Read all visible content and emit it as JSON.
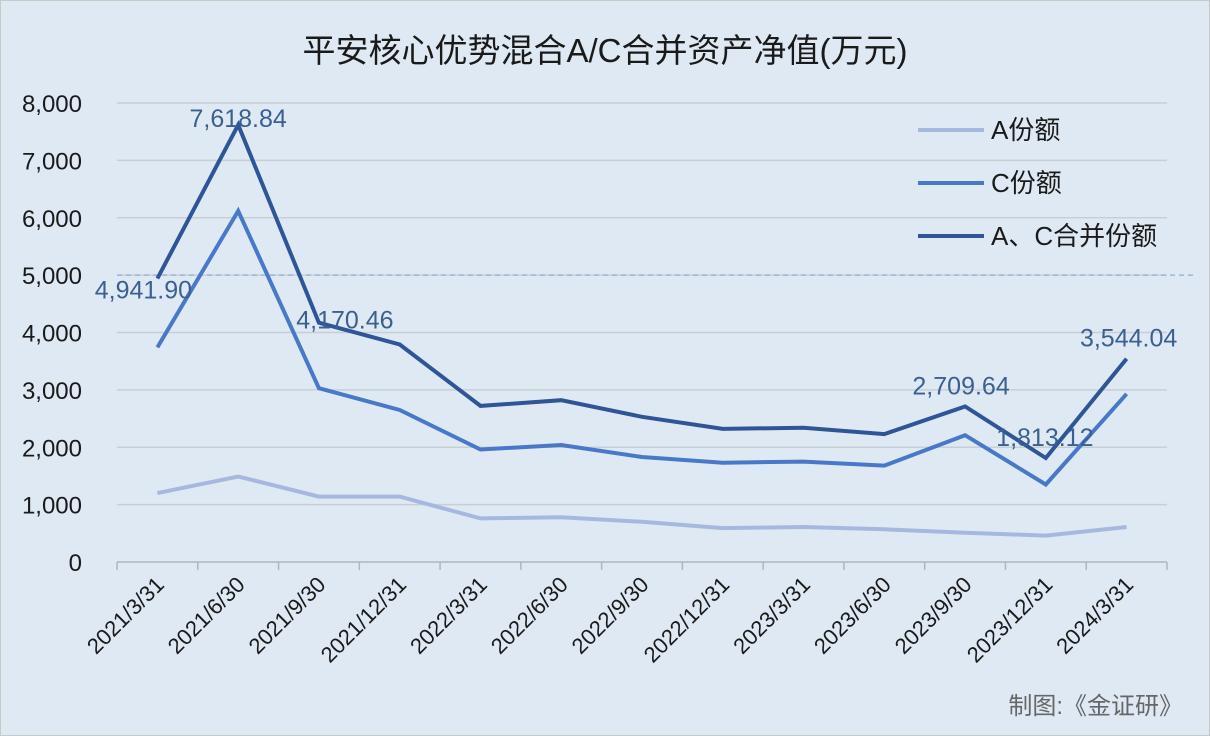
{
  "chart_data": {
    "type": "line",
    "title": "平安核心优势混合A/C合并资产净值(万元)",
    "categories": [
      "2021/3/31",
      "2021/6/30",
      "2021/9/30",
      "2021/12/31",
      "2022/3/31",
      "2022/6/30",
      "2022/9/30",
      "2022/12/31",
      "2023/3/31",
      "2023/6/30",
      "2023/9/30",
      "2023/12/31",
      "2024/3/31"
    ],
    "ylim": [
      0,
      8000
    ],
    "yticks": [
      0,
      1000,
      2000,
      3000,
      4000,
      5000,
      6000,
      7000,
      8000
    ],
    "ytick_labels": [
      "0",
      "1,000",
      "2,000",
      "3,000",
      "4,000",
      "5,000",
      "6,000",
      "7,000",
      "8,000"
    ],
    "grid": true,
    "reference_line": 5000,
    "legend_position": "top-right",
    "series": [
      {
        "name": "A份额",
        "color": "#a7b8df",
        "values": [
          1200,
          1490,
          1140,
          1140,
          760,
          780,
          700,
          590,
          610,
          570,
          510,
          460,
          610
        ]
      },
      {
        "name": "C份额",
        "color": "#4a78c8",
        "values": [
          3740,
          6120,
          3030,
          2650,
          1960,
          2040,
          1830,
          1730,
          1750,
          1680,
          2210,
          1350,
          2930
        ]
      },
      {
        "name": "A、C合并份额",
        "color": "#2f5597",
        "values": [
          4941.9,
          7618.84,
          4170.46,
          3790,
          2720,
          2820,
          2530,
          2320,
          2340,
          2230,
          2709.64,
          1813.12,
          3544.04
        ]
      }
    ],
    "data_labels": [
      {
        "series": 2,
        "index": 0,
        "text": "4,941.90"
      },
      {
        "series": 2,
        "index": 1,
        "text": "7,618.84"
      },
      {
        "series": 2,
        "index": 2,
        "text": "4,170.46"
      },
      {
        "series": 2,
        "index": 10,
        "text": "2,709.64"
      },
      {
        "series": 2,
        "index": 11,
        "text": "1,813.12"
      },
      {
        "series": 2,
        "index": 12,
        "text": "3,544.04"
      }
    ]
  },
  "credit": "制图:《金证研》"
}
